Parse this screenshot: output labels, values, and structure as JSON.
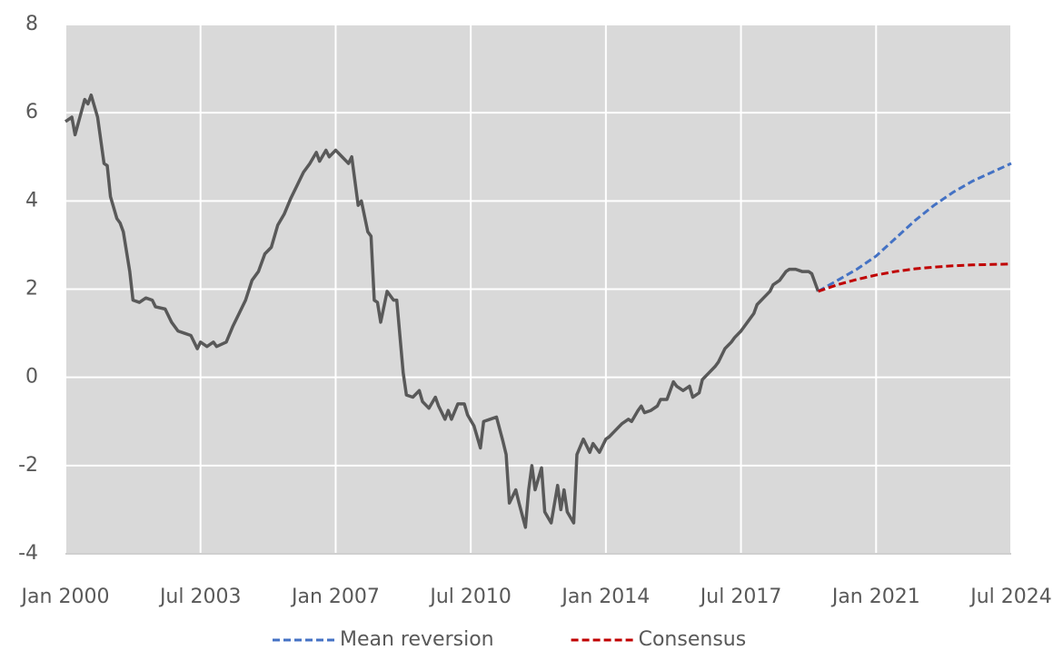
{
  "chart_data": {
    "type": "line",
    "xlim": [
      "2000-01",
      "2024-07"
    ],
    "xticks": [
      {
        "value": "2000-01",
        "label": "Jan 2000"
      },
      {
        "value": "2003-07",
        "label": "Jul 2003"
      },
      {
        "value": "2007-01",
        "label": "Jan 2007"
      },
      {
        "value": "2010-07",
        "label": "Jul 2010"
      },
      {
        "value": "2014-01",
        "label": "Jan 2014"
      },
      {
        "value": "2017-07",
        "label": "Jul 2017"
      },
      {
        "value": "2021-01",
        "label": "Jan 2021"
      },
      {
        "value": "2024-07",
        "label": "Jul 2024"
      }
    ],
    "ylim": [
      -4,
      8
    ],
    "yticks": [
      -4,
      -2,
      0,
      2,
      4,
      6,
      8
    ],
    "grid": true,
    "legend": "bottom",
    "series": [
      {
        "color": "#595959",
        "dash": false,
        "x": [
          "2000-01",
          "2000-03",
          "2000-04",
          "2000-07",
          "2000-08",
          "2000-09",
          "2000-11",
          "2001-01",
          "2001-02",
          "2001-03",
          "2001-05",
          "2001-06",
          "2001-07",
          "2001-09",
          "2001-10",
          "2001-12",
          "2002-02",
          "2002-04",
          "2002-05",
          "2002-08",
          "2002-10",
          "2002-12",
          "2003-02",
          "2003-04",
          "2003-06",
          "2003-07",
          "2003-09",
          "2003-11",
          "2003-12",
          "2004-03",
          "2004-05",
          "2004-07",
          "2004-09",
          "2004-11",
          "2005-01",
          "2005-03",
          "2005-05",
          "2005-07",
          "2005-09",
          "2005-11",
          "2006-01",
          "2006-03",
          "2006-05",
          "2006-07",
          "2006-08",
          "2006-10",
          "2006-11",
          "2007-01",
          "2007-03",
          "2007-05",
          "2007-06",
          "2007-08",
          "2007-09",
          "2007-11",
          "2007-12",
          "2008-01",
          "2008-02",
          "2008-03",
          "2008-05",
          "2008-07",
          "2008-08",
          "2008-10",
          "2008-11",
          "2009-01",
          "2009-03",
          "2009-04",
          "2009-06",
          "2009-08",
          "2009-09",
          "2009-11",
          "2009-12",
          "2010-01",
          "2010-03",
          "2010-05",
          "2010-06",
          "2010-08",
          "2010-10",
          "2010-11",
          "2011-01",
          "2011-03",
          "2011-05",
          "2011-06",
          "2011-07",
          "2011-09",
          "2011-10",
          "2011-12",
          "2012-01",
          "2012-02",
          "2012-03",
          "2012-05",
          "2012-06",
          "2012-08",
          "2012-10",
          "2012-11",
          "2012-12",
          "2013-01",
          "2013-03",
          "2013-04",
          "2013-06",
          "2013-08",
          "2013-09",
          "2013-11",
          "2014-01",
          "2014-02",
          "2014-04",
          "2014-06",
          "2014-08",
          "2014-09",
          "2014-11",
          "2014-12",
          "2015-01",
          "2015-03",
          "2015-05",
          "2015-06",
          "2015-08",
          "2015-10",
          "2015-11",
          "2016-01",
          "2016-03",
          "2016-04",
          "2016-06",
          "2016-07",
          "2016-09",
          "2016-11",
          "2016-12",
          "2017-02",
          "2017-04",
          "2017-05",
          "2017-07",
          "2017-09",
          "2017-11",
          "2017-12",
          "2018-02",
          "2018-04",
          "2018-05",
          "2018-07",
          "2018-09",
          "2018-10",
          "2018-12",
          "2019-02",
          "2019-04",
          "2019-05",
          "2019-07"
        ],
        "values": [
          5.8,
          5.9,
          5.5,
          6.3,
          6.2,
          6.4,
          5.9,
          4.85,
          4.8,
          4.1,
          3.6,
          3.5,
          3.3,
          2.4,
          1.75,
          1.7,
          1.8,
          1.75,
          1.6,
          1.55,
          1.25,
          1.05,
          1.0,
          0.95,
          0.65,
          0.8,
          0.7,
          0.8,
          0.7,
          0.8,
          1.15,
          1.45,
          1.75,
          2.2,
          2.4,
          2.8,
          2.95,
          3.45,
          3.7,
          4.05,
          4.35,
          4.65,
          4.85,
          5.1,
          4.9,
          5.15,
          5.0,
          5.15,
          5.0,
          4.85,
          5.0,
          3.9,
          4.0,
          3.3,
          3.2,
          1.75,
          1.7,
          1.25,
          1.95,
          1.75,
          1.75,
          0.1,
          -0.4,
          -0.45,
          -0.3,
          -0.55,
          -0.7,
          -0.45,
          -0.65,
          -0.95,
          -0.75,
          -0.95,
          -0.6,
          -0.6,
          -0.85,
          -1.1,
          -1.6,
          -1.0,
          -0.95,
          -0.9,
          -1.45,
          -1.75,
          -2.85,
          -2.55,
          -2.85,
          -3.4,
          -2.55,
          -2.0,
          -2.55,
          -2.05,
          -3.05,
          -3.3,
          -2.45,
          -3.0,
          -2.55,
          -3.05,
          -3.3,
          -1.75,
          -1.4,
          -1.7,
          -1.5,
          -1.7,
          -1.4,
          -1.35,
          -1.2,
          -1.05,
          -0.95,
          -1.0,
          -0.75,
          -0.65,
          -0.8,
          -0.75,
          -0.65,
          -0.5,
          -0.5,
          -0.1,
          -0.2,
          -0.3,
          -0.2,
          -0.45,
          -0.35,
          -0.05,
          0.1,
          0.25,
          0.35,
          0.65,
          0.8,
          0.9,
          1.05,
          1.25,
          1.45,
          1.65,
          1.8,
          1.95,
          2.1,
          2.2,
          2.4,
          2.45,
          2.45,
          2.4,
          2.4,
          2.35,
          1.95
        ]
      },
      {
        "name": "Mean reversion",
        "color": "#4472c4",
        "dash": true,
        "x": [
          "2019-07",
          "2020-01",
          "2020-07",
          "2021-01",
          "2021-07",
          "2022-01",
          "2022-07",
          "2023-01",
          "2023-07",
          "2024-01",
          "2024-07"
        ],
        "values": [
          1.95,
          2.2,
          2.45,
          2.75,
          3.15,
          3.55,
          3.9,
          4.2,
          4.45,
          4.65,
          4.85
        ]
      },
      {
        "name": "Consensus",
        "color": "#c00000",
        "dash": true,
        "x": [
          "2019-07",
          "2020-01",
          "2020-07",
          "2021-01",
          "2021-07",
          "2022-01",
          "2022-07",
          "2023-01",
          "2023-07",
          "2024-01",
          "2024-07"
        ],
        "values": [
          1.95,
          2.1,
          2.22,
          2.32,
          2.4,
          2.46,
          2.5,
          2.53,
          2.55,
          2.56,
          2.57
        ]
      }
    ]
  }
}
